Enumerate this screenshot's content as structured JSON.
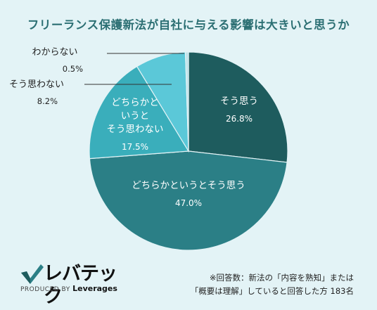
{
  "chart_data": {
    "type": "pie",
    "title": "フリーランス保護新法が自社に与える影響は大きいと思うか",
    "slices": [
      {
        "label": "そう思う",
        "value": 26.8,
        "value_label": "26.8%",
        "color": "#1e5c5e"
      },
      {
        "label": "どちらかというとそう思う",
        "value": 47.0,
        "value_label": "47.0%",
        "color": "#2b7f86"
      },
      {
        "label": "どちらかと\nいうと\nそう思わない",
        "value": 17.5,
        "value_label": "17.5%",
        "color": "#3aaebb"
      },
      {
        "label": "そう思わない",
        "value": 8.2,
        "value_label": "8.2%",
        "color": "#5bc8d8"
      },
      {
        "label": "わからない",
        "value": 0.5,
        "value_label": "0.5%",
        "color": "#bfe3ea"
      }
    ],
    "start_angle_deg": 0,
    "direction": "clockwise"
  },
  "logo": {
    "name": "レバテック",
    "produced_by": "PRODUCED BY",
    "company": "Leverages"
  },
  "note": {
    "line1": "※回答数：新法の「内容を熟知」または",
    "line2": "「概要は理解」していると回答した方 183名"
  },
  "colors": {
    "background": "#e3f3f6",
    "title": "#2b6f73"
  }
}
